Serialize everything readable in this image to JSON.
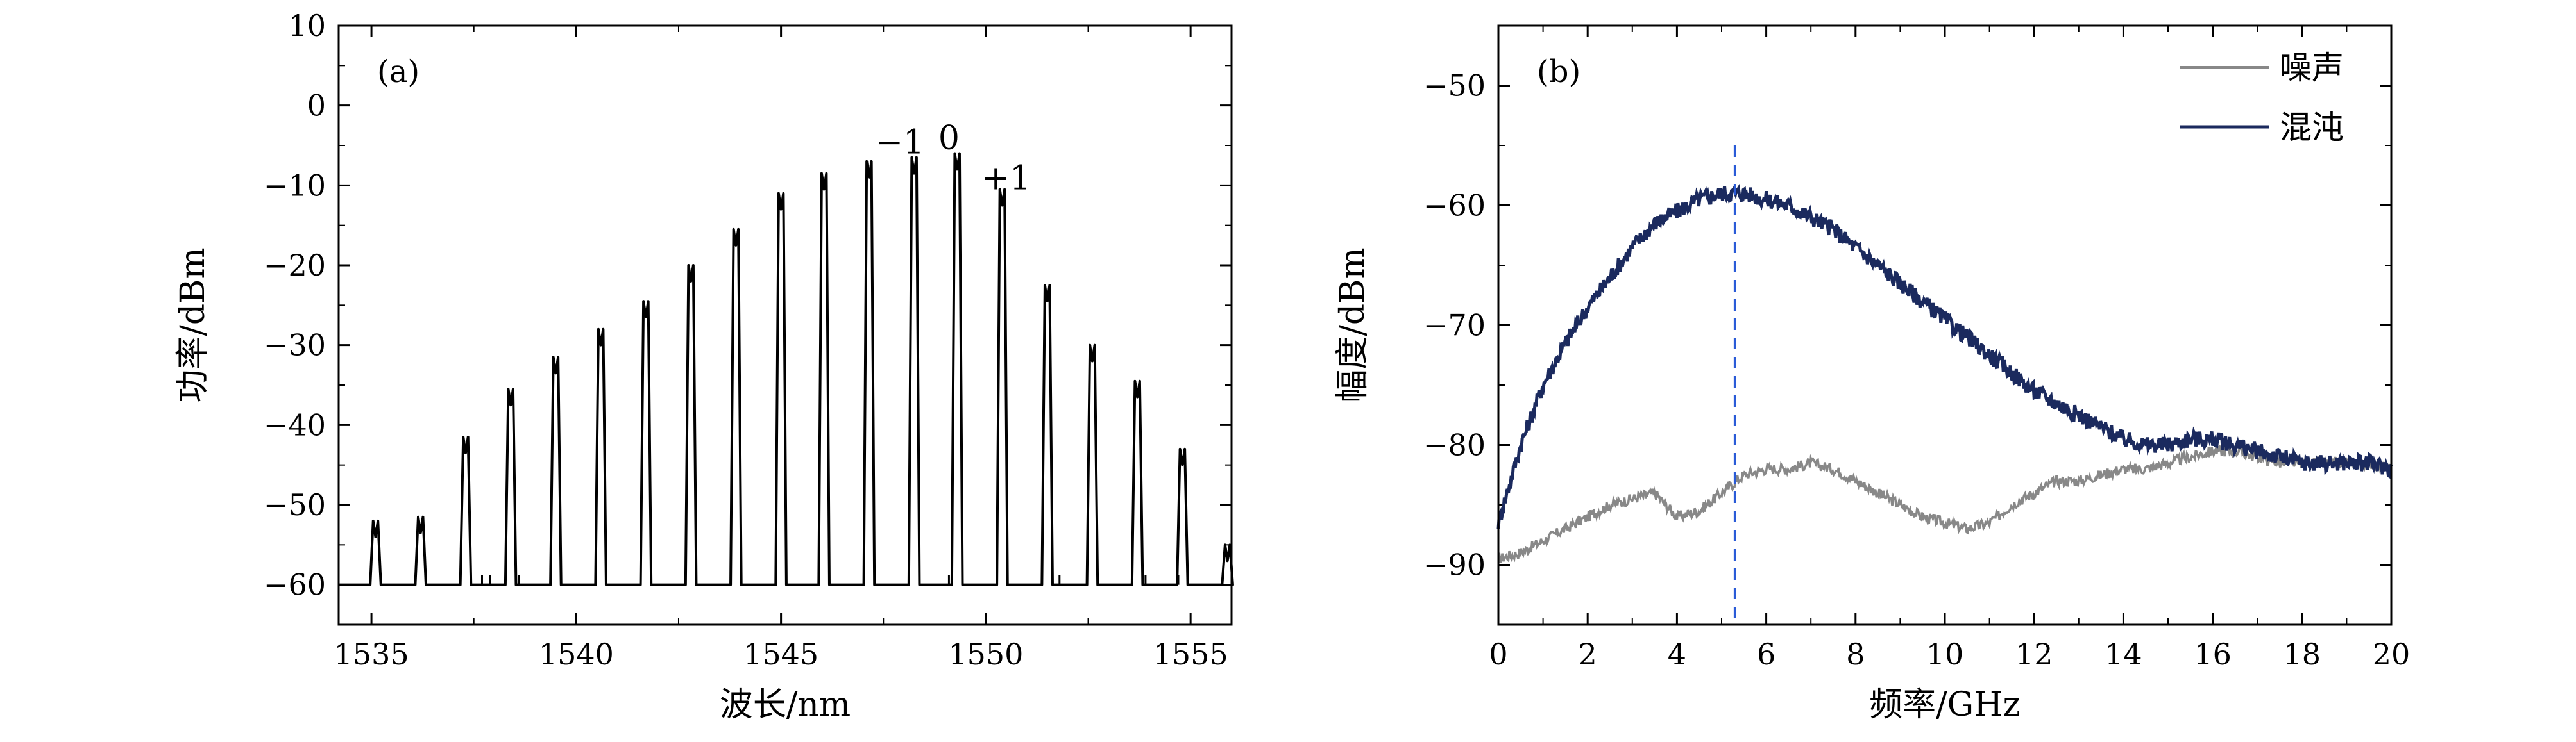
{
  "chart_data": [
    {
      "type": "line",
      "panel_label": "(a)",
      "xlabel": "波长/nm",
      "ylabel": "功率/dBm",
      "xlim": [
        1534.2,
        1556
      ],
      "ylim": [
        -65,
        10
      ],
      "xticks": [
        1535,
        1540,
        1545,
        1550,
        1555
      ],
      "yticks": [
        10,
        0,
        -10,
        -20,
        -30,
        -40,
        -50,
        -60
      ],
      "tick_labels_x": [
        "1535",
        "1540",
        "1545",
        "1550",
        "1555"
      ],
      "tick_labels_y": [
        "10",
        "0",
        "−10",
        "−20",
        "−30",
        "−40",
        "−50",
        "−60"
      ],
      "baseline": -60,
      "series": [
        {
          "color": "#000000",
          "peaks": [
            {
              "x": 1535.1,
              "y": -54
            },
            {
              "x": 1536.2,
              "y": -53.5
            },
            {
              "x": 1537.3,
              "y": -43.5
            },
            {
              "x": 1538.4,
              "y": -37.5
            },
            {
              "x": 1539.5,
              "y": -33.5
            },
            {
              "x": 1540.6,
              "y": -30
            },
            {
              "x": 1541.7,
              "y": -26.5
            },
            {
              "x": 1542.8,
              "y": -22
            },
            {
              "x": 1543.9,
              "y": -17.5
            },
            {
              "x": 1545.0,
              "y": -13
            },
            {
              "x": 1546.05,
              "y": -10.5
            },
            {
              "x": 1547.15,
              "y": -9
            },
            {
              "x": 1548.25,
              "y": -8.5
            },
            {
              "x": 1549.3,
              "y": -8
            },
            {
              "x": 1550.4,
              "y": -12.5
            },
            {
              "x": 1551.5,
              "y": -24.5
            },
            {
              "x": 1552.6,
              "y": -32
            },
            {
              "x": 1553.7,
              "y": -36.5
            },
            {
              "x": 1554.8,
              "y": -45
            },
            {
              "x": 1555.9,
              "y": -57
            }
          ]
        }
      ],
      "annotations": [
        {
          "text": "−1",
          "x": 1547.9,
          "y": -6
        },
        {
          "text": "0",
          "x": 1549.1,
          "y": -5.5
        },
        {
          "text": "+1",
          "x": 1550.5,
          "y": -10.5
        }
      ]
    },
    {
      "type": "line",
      "panel_label": "(b)",
      "xlabel": "频率/GHz",
      "ylabel": "幅度/dBm",
      "xlim": [
        0,
        20
      ],
      "ylim": [
        -95,
        -45
      ],
      "xticks": [
        0,
        2,
        4,
        6,
        8,
        10,
        12,
        14,
        16,
        18,
        20
      ],
      "yticks": [
        -50,
        -60,
        -70,
        -80,
        -90
      ],
      "tick_labels_x": [
        "0",
        "2",
        "4",
        "6",
        "8",
        "10",
        "12",
        "14",
        "16",
        "18",
        "20"
      ],
      "tick_labels_y": [
        "−50",
        "−60",
        "−70",
        "−80",
        "−90"
      ],
      "legend": "top-right",
      "marker_line": {
        "x": 5.3,
        "style": "dashed",
        "color": "#2a5bd7"
      },
      "series": [
        {
          "name": "噪声",
          "color": "#888888",
          "x": [
            0,
            0.5,
            1,
            1.5,
            2,
            2.5,
            3,
            3.5,
            4,
            4.5,
            5,
            5.5,
            6,
            6.5,
            7,
            7.5,
            8,
            8.5,
            9,
            9.5,
            10,
            10.5,
            11,
            11.5,
            12,
            12.5,
            13,
            13.5,
            14,
            14.5,
            15,
            15.5,
            16,
            16.5,
            17,
            17.5,
            18,
            18.5,
            19,
            19.5,
            20
          ],
          "y": [
            -89.5,
            -89,
            -88,
            -87,
            -86,
            -85,
            -84.5,
            -84,
            -86,
            -85.5,
            -84,
            -82.5,
            -82,
            -82,
            -81.5,
            -82,
            -83,
            -84,
            -85,
            -86,
            -86.5,
            -87,
            -86.5,
            -85,
            -84,
            -83,
            -83,
            -82.5,
            -82,
            -82,
            -81.5,
            -81,
            -80.5,
            -80.5,
            -81,
            -81.5,
            -81.5,
            -81.5,
            -81.5,
            -81.5,
            -82
          ]
        },
        {
          "name": "混沌",
          "color": "#1b2a5e",
          "x": [
            0,
            0.5,
            1,
            1.5,
            2,
            2.5,
            3,
            3.5,
            4,
            4.5,
            5,
            5.5,
            6,
            6.5,
            7,
            7.5,
            8,
            8.5,
            9,
            9.5,
            10,
            10.5,
            11,
            11.5,
            12,
            12.5,
            13,
            13.5,
            14,
            14.5,
            15,
            15.5,
            16,
            16.5,
            17,
            17.5,
            18,
            18.5,
            19,
            19.5,
            20
          ],
          "y": [
            -86.5,
            -80,
            -75,
            -71.5,
            -68.5,
            -66,
            -63.5,
            -61.5,
            -60.5,
            -59.5,
            -59,
            -59,
            -59.5,
            -60,
            -61,
            -62,
            -63.5,
            -65,
            -66.5,
            -68,
            -69.5,
            -71,
            -72.5,
            -74,
            -75.5,
            -76.5,
            -77.5,
            -78.5,
            -79.5,
            -80,
            -80,
            -79.5,
            -79.5,
            -80,
            -80.5,
            -81,
            -81.5,
            -81.5,
            -81.5,
            -81.5,
            -82
          ]
        }
      ]
    }
  ]
}
